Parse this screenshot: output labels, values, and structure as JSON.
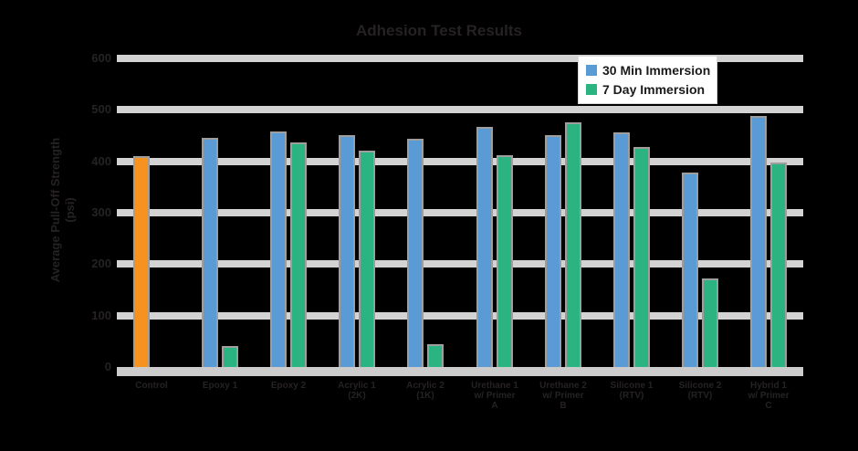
{
  "background": "#000000",
  "chart_data": {
    "type": "bar",
    "title": "Adhesion Test Results",
    "y_axis": {
      "title_lines": [
        "Average Pull-Off Strength",
        "(psi)"
      ],
      "max": 600,
      "ticks": [
        600,
        500,
        400,
        300,
        200,
        100,
        0
      ]
    },
    "x_axis": {
      "categories": [
        {
          "label_lines": [
            "Control"
          ],
          "control": true
        },
        {
          "label_lines": [
            "Epoxy 1"
          ]
        },
        {
          "label_lines": [
            "Epoxy 2"
          ]
        },
        {
          "label_lines": [
            "Acrylic 1",
            "(2K)"
          ]
        },
        {
          "label_lines": [
            "Acrylic 2",
            "(1K)"
          ]
        },
        {
          "label_lines": [
            "Urethane 1",
            "w/ Primer",
            "A"
          ]
        },
        {
          "label_lines": [
            "Urethane 2",
            "w/ Primer",
            "B"
          ]
        },
        {
          "label_lines": [
            "Silicone 1",
            "(RTV)"
          ]
        },
        {
          "label_lines": [
            "Silicone 2",
            "(RTV)"
          ]
        },
        {
          "label_lines": [
            "Hybrid 1",
            "w/ Primer",
            "C"
          ]
        }
      ]
    },
    "series": [
      {
        "name": "30 Min Immersion",
        "color": "#5b9bd5",
        "values": [
          410,
          445,
          458,
          450,
          443,
          467,
          451,
          457,
          378,
          489
        ]
      },
      {
        "name": "7 Day Immersion",
        "color": "#2bb381",
        "values": [
          null,
          40,
          437,
          420,
          45,
          412,
          476,
          427,
          172,
          398
        ]
      }
    ],
    "control_color": "#f6921e",
    "legend_position": "top-right",
    "grid": true,
    "ylim": [
      0,
      600
    ]
  },
  "colors": {
    "background": "#000000",
    "gridline": "#d3d3d3",
    "axis_line": "#cccccc",
    "chart_text": "#262223",
    "bar_border": "#9e9e9e",
    "legend_bg": "#ffffff",
    "legend_border": "#d9d9d9",
    "legend_text": "#1a1a1a"
  }
}
